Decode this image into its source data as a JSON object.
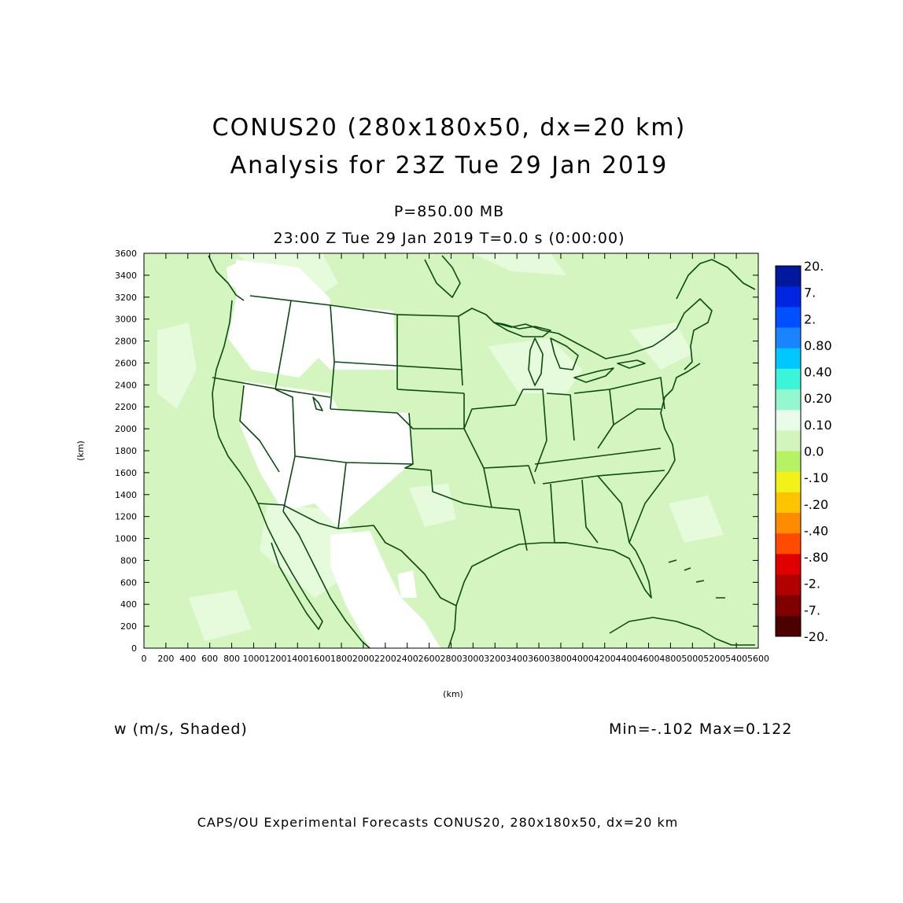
{
  "title_line1": "CONUS20 (280x180x50, dx=20 km)",
  "title_line2": "Analysis for 23Z Tue 29 Jan 2019",
  "level_label": "P=850.00 MB",
  "time_label": "23:00 Z Tue 29 Jan 2019    T=0.0 s (0:00:00)",
  "variable_label": "w (m/s, Shaded)",
  "min_max_label": "Min=-.102 Max=0.122",
  "footer": "CAPS/OU Experimental Forecasts  CONUS20, 280x180x50, dx=20 km",
  "colors": {
    "coastline": "#0b4a10",
    "field_base": "#d4f5c0",
    "field_light": "#e6fadc",
    "field_none": "#ffffff"
  },
  "chart_data": {
    "type": "heatmap",
    "xlabel": "(km)",
    "ylabel": "(km)",
    "xlim": [
      0,
      5600
    ],
    "ylim": [
      0,
      3600
    ],
    "x_ticks": [
      "0",
      "200",
      "400",
      "600",
      "800",
      "1000",
      "1200",
      "1400",
      "1600",
      "1800",
      "2000",
      "2200",
      "2400",
      "2600",
      "2800",
      "3000",
      "3200",
      "3400",
      "3600",
      "3800",
      "4000",
      "4200",
      "4400",
      "4600",
      "4800",
      "5000",
      "5200",
      "5400",
      "5600"
    ],
    "y_ticks": [
      "0",
      "200",
      "400",
      "600",
      "800",
      "1000",
      "1200",
      "1400",
      "1600",
      "1800",
      "2000",
      "2200",
      "2400",
      "2600",
      "2800",
      "3000",
      "3200",
      "3400",
      "3600"
    ],
    "colorbar": [
      {
        "label": "20.",
        "color": "#00189c"
      },
      {
        "label": "7.",
        "color": "#0025e0"
      },
      {
        "label": "2.",
        "color": "#0050ff"
      },
      {
        "label": "0.80",
        "color": "#1a84ff"
      },
      {
        "label": "0.40",
        "color": "#00c8ff"
      },
      {
        "label": "0.20",
        "color": "#3af5d8"
      },
      {
        "label": "0.10",
        "color": "#93f7d0"
      },
      {
        "label": "0.0",
        "color": "#e9fbe9"
      },
      {
        "label": "-.10",
        "color": "#d2f5be"
      },
      {
        "label": "-.20",
        "color": "#b6f264"
      },
      {
        "label": "-.40",
        "color": "#f2f21a"
      },
      {
        "label": "-.80",
        "color": "#ffc400"
      },
      {
        "label": "-2.",
        "color": "#ff8c00"
      },
      {
        "label": "-7.",
        "color": "#ff4a00"
      },
      {
        "label": "-20.",
        "color": "#e00000"
      },
      {
        "label": "",
        "color": "#b00000"
      },
      {
        "label": "",
        "color": "#800000"
      },
      {
        "label": "",
        "color": "#4d0000"
      }
    ],
    "min": -0.102,
    "max": 0.122
  }
}
